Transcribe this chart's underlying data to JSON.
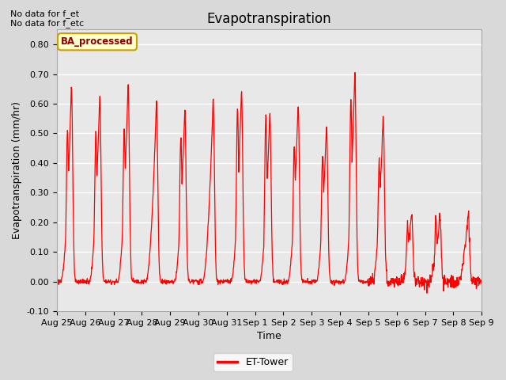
{
  "title": "Evapotranspiration",
  "xlabel": "Time",
  "ylabel": "Evapotranspiration (mm/hr)",
  "ylim": [
    -0.1,
    0.85
  ],
  "yticks": [
    -0.1,
    0.0,
    0.1,
    0.2,
    0.3,
    0.4,
    0.5,
    0.6,
    0.7,
    0.8
  ],
  "fig_bg_color": "#d9d9d9",
  "plot_bg_color": "#e8e8e8",
  "line_color": "red",
  "line_width": 0.9,
  "legend_label": "ET-Tower",
  "annotation_text": "BA_processed",
  "annotation_color": "#8B0000",
  "annotation_bg": "#ffffcc",
  "annotation_border": "#c8a000",
  "top_left_text1": "No data for f_et",
  "top_left_text2": "No data for f_etc",
  "x_labels": [
    "Aug 25",
    "Aug 26",
    "Aug 27",
    "Aug 28",
    "Aug 29",
    "Aug 30",
    "Aug 31",
    "Sep 1",
    "Sep 2",
    "Sep 3",
    "Sep 4",
    "Sep 5",
    "Sep 6",
    "Sep 7",
    "Sep 8",
    "Sep 9"
  ],
  "n_days": 15,
  "daily_peaks": [
    0.66,
    0.63,
    0.67,
    0.61,
    0.58,
    0.62,
    0.65,
    0.57,
    0.6,
    0.53,
    0.71,
    0.56,
    0.23,
    0.22,
    0.23
  ],
  "daily_secondary_peaks": [
    0.51,
    0.51,
    0.52,
    0.0,
    0.49,
    0.0,
    0.58,
    0.56,
    0.46,
    0.42,
    0.61,
    0.4,
    0.19,
    0.21,
    0.08
  ],
  "pts_per_day": 96,
  "grid_color": "white",
  "grid_lw": 1.0,
  "title_fontsize": 12,
  "tick_fontsize": 8,
  "label_fontsize": 9,
  "legend_fontsize": 9
}
